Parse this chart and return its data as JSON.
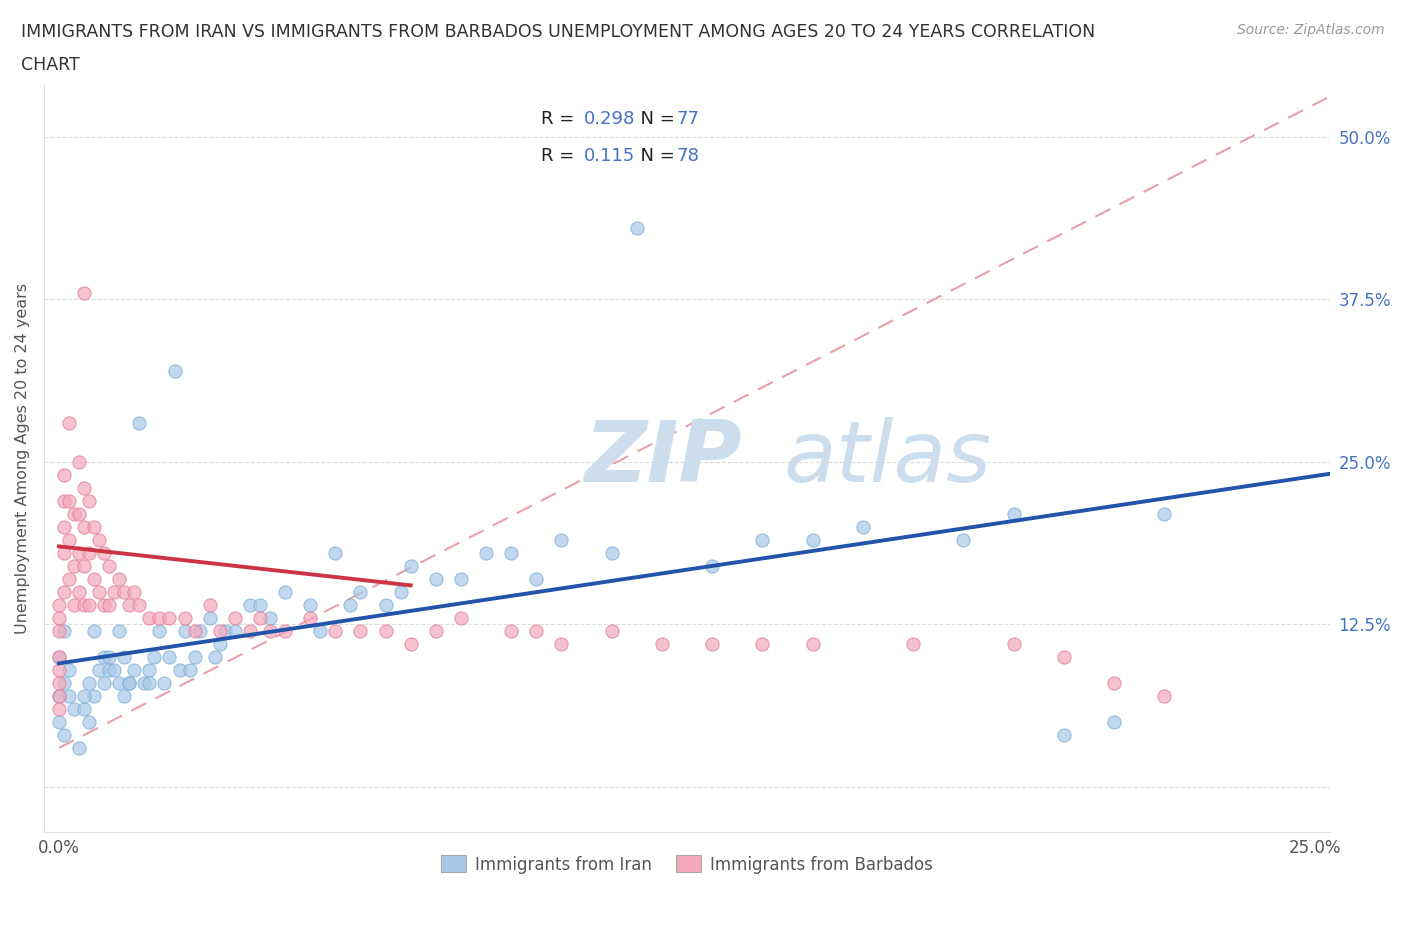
{
  "title_line1": "IMMIGRANTS FROM IRAN VS IMMIGRANTS FROM BARBADOS UNEMPLOYMENT AMONG AGES 20 TO 24 YEARS CORRELATION",
  "title_line2": "CHART",
  "source_text": "Source: ZipAtlas.com",
  "ylabel": "Unemployment Among Ages 20 to 24 years",
  "xmin": 0.0,
  "xmax": 0.25,
  "ymin": -0.035,
  "ymax": 0.54,
  "iran_color": "#a8c8e8",
  "iran_edge_color": "#7aacd4",
  "barbados_color": "#f4a8bc",
  "barbados_edge_color": "#e07898",
  "iran_trend_color": "#2255aa",
  "barbados_trend_color": "#cc3344",
  "ref_line_color": "#e8a0a8",
  "iran_trend_x0": 0.0,
  "iran_trend_y0": 0.095,
  "iran_trend_x1": 0.255,
  "iran_trend_y1": 0.242,
  "barbados_trend_x0": 0.0,
  "barbados_trend_x1": 0.07,
  "barbados_trend_y0": 0.185,
  "barbados_trend_y1": 0.155,
  "ref_line_x0": 0.0,
  "ref_line_y0": 0.03,
  "ref_line_x1": 0.255,
  "ref_line_y1": 0.535,
  "ytick_vals": [
    0.0,
    0.125,
    0.25,
    0.375,
    0.5
  ],
  "ytick_labels": [
    "",
    "12.5%",
    "25.0%",
    "37.5%",
    "50.0%"
  ],
  "xtick_vals": [
    0.0,
    0.25
  ],
  "xtick_labels": [
    "0.0%",
    "25.0%"
  ],
  "legend_iran_label": "Immigrants from Iran",
  "legend_barbados_label": "Immigrants from Barbados",
  "watermark_top": "ZIP",
  "watermark_bot": "atlas",
  "watermark_color": "#ccdded",
  "background_color": "#ffffff",
  "iran_scatter_x": [
    0.002,
    0.001,
    0.003,
    0.0,
    0.001,
    0.0,
    0.002,
    0.001,
    0.004,
    0.0,
    0.006,
    0.007,
    0.005,
    0.008,
    0.006,
    0.009,
    0.007,
    0.005,
    0.01,
    0.009,
    0.012,
    0.011,
    0.013,
    0.01,
    0.014,
    0.012,
    0.015,
    0.016,
    0.014,
    0.013,
    0.018,
    0.017,
    0.019,
    0.02,
    0.018,
    0.022,
    0.021,
    0.023,
    0.025,
    0.024,
    0.027,
    0.028,
    0.026,
    0.03,
    0.031,
    0.033,
    0.032,
    0.035,
    0.038,
    0.04,
    0.042,
    0.045,
    0.05,
    0.052,
    0.055,
    0.058,
    0.06,
    0.065,
    0.068,
    0.07,
    0.075,
    0.08,
    0.085,
    0.09,
    0.095,
    0.1,
    0.11,
    0.115,
    0.13,
    0.14,
    0.15,
    0.16,
    0.18,
    0.19,
    0.2,
    0.21,
    0.22
  ],
  "iran_scatter_y": [
    0.07,
    0.04,
    0.06,
    0.05,
    0.08,
    0.1,
    0.09,
    0.12,
    0.03,
    0.07,
    0.08,
    0.07,
    0.06,
    0.09,
    0.05,
    0.1,
    0.12,
    0.07,
    0.09,
    0.08,
    0.08,
    0.09,
    0.07,
    0.1,
    0.08,
    0.12,
    0.09,
    0.28,
    0.08,
    0.1,
    0.09,
    0.08,
    0.1,
    0.12,
    0.08,
    0.1,
    0.08,
    0.32,
    0.12,
    0.09,
    0.1,
    0.12,
    0.09,
    0.13,
    0.1,
    0.12,
    0.11,
    0.12,
    0.14,
    0.14,
    0.13,
    0.15,
    0.14,
    0.12,
    0.18,
    0.14,
    0.15,
    0.14,
    0.15,
    0.17,
    0.16,
    0.16,
    0.18,
    0.18,
    0.16,
    0.19,
    0.18,
    0.43,
    0.17,
    0.19,
    0.19,
    0.2,
    0.19,
    0.21,
    0.04,
    0.05,
    0.21
  ],
  "barbados_scatter_x": [
    0.0,
    0.0,
    0.0,
    0.0,
    0.0,
    0.0,
    0.0,
    0.0,
    0.001,
    0.001,
    0.001,
    0.001,
    0.001,
    0.002,
    0.002,
    0.002,
    0.002,
    0.003,
    0.003,
    0.003,
    0.004,
    0.004,
    0.004,
    0.004,
    0.005,
    0.005,
    0.005,
    0.005,
    0.005,
    0.006,
    0.006,
    0.006,
    0.007,
    0.007,
    0.008,
    0.008,
    0.009,
    0.009,
    0.01,
    0.01,
    0.011,
    0.012,
    0.013,
    0.014,
    0.015,
    0.016,
    0.018,
    0.02,
    0.022,
    0.025,
    0.027,
    0.03,
    0.032,
    0.035,
    0.038,
    0.04,
    0.042,
    0.045,
    0.05,
    0.055,
    0.06,
    0.065,
    0.07,
    0.075,
    0.08,
    0.09,
    0.095,
    0.1,
    0.11,
    0.12,
    0.13,
    0.14,
    0.15,
    0.17,
    0.19,
    0.2,
    0.21,
    0.22
  ],
  "barbados_scatter_y": [
    0.13,
    0.12,
    0.14,
    0.1,
    0.09,
    0.08,
    0.07,
    0.06,
    0.15,
    0.18,
    0.2,
    0.22,
    0.24,
    0.16,
    0.19,
    0.22,
    0.28,
    0.14,
    0.17,
    0.21,
    0.15,
    0.18,
    0.21,
    0.25,
    0.14,
    0.17,
    0.2,
    0.23,
    0.38,
    0.14,
    0.18,
    0.22,
    0.16,
    0.2,
    0.15,
    0.19,
    0.14,
    0.18,
    0.14,
    0.17,
    0.15,
    0.16,
    0.15,
    0.14,
    0.15,
    0.14,
    0.13,
    0.13,
    0.13,
    0.13,
    0.12,
    0.14,
    0.12,
    0.13,
    0.12,
    0.13,
    0.12,
    0.12,
    0.13,
    0.12,
    0.12,
    0.12,
    0.11,
    0.12,
    0.13,
    0.12,
    0.12,
    0.11,
    0.12,
    0.11,
    0.11,
    0.11,
    0.11,
    0.11,
    0.11,
    0.1,
    0.08,
    0.07
  ]
}
